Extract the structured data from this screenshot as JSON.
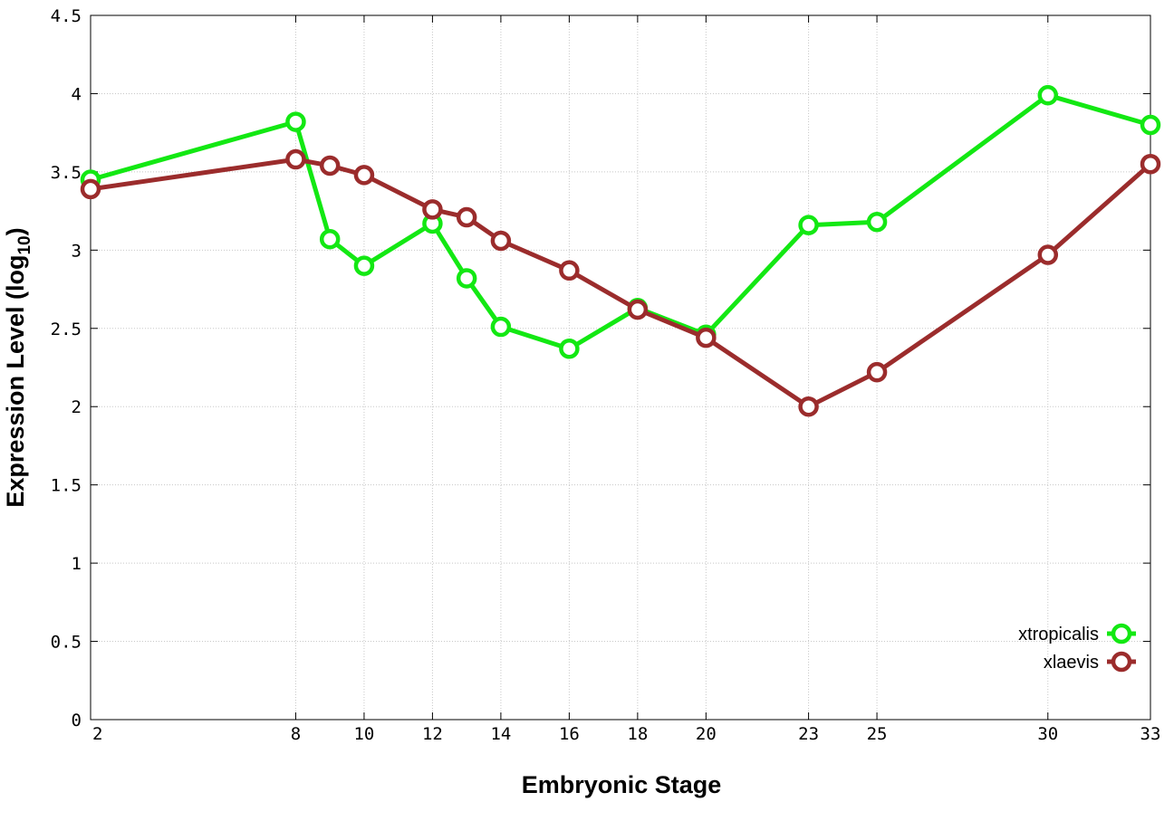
{
  "chart_data": {
    "type": "line",
    "xlabel": "Embryonic Stage",
    "ylabel_main": "Expression Level (log",
    "ylabel_sub": "10",
    "ylabel_close": ")",
    "x_ticks": [
      2,
      8,
      10,
      12,
      14,
      16,
      18,
      20,
      23,
      25,
      30,
      33
    ],
    "y_ticks": [
      "0",
      "0.5",
      "1",
      "1.5",
      "2",
      "2.5",
      "3",
      "3.5",
      "4",
      "4.5"
    ],
    "ylim": [
      0,
      4.5
    ],
    "xlim": [
      2,
      33
    ],
    "grid": true,
    "legend_position": "bottom-right",
    "series": [
      {
        "name": "xtropicalis",
        "color": "#13e813",
        "x": [
          2,
          8,
          9,
          10,
          12,
          13,
          14,
          16,
          18,
          20,
          23,
          25,
          30,
          33
        ],
        "y": [
          3.45,
          3.82,
          3.07,
          2.9,
          3.17,
          2.82,
          2.51,
          2.37,
          2.63,
          2.46,
          3.16,
          3.18,
          3.99,
          3.8
        ]
      },
      {
        "name": "xlaevis",
        "color": "#9b2c2c",
        "x": [
          2,
          8,
          9,
          10,
          12,
          13,
          14,
          16,
          18,
          20,
          23,
          25,
          30,
          33
        ],
        "y": [
          3.39,
          3.58,
          3.54,
          3.48,
          3.26,
          3.21,
          3.06,
          2.87,
          2.62,
          2.44,
          2.0,
          2.22,
          2.97,
          3.55
        ]
      }
    ]
  }
}
